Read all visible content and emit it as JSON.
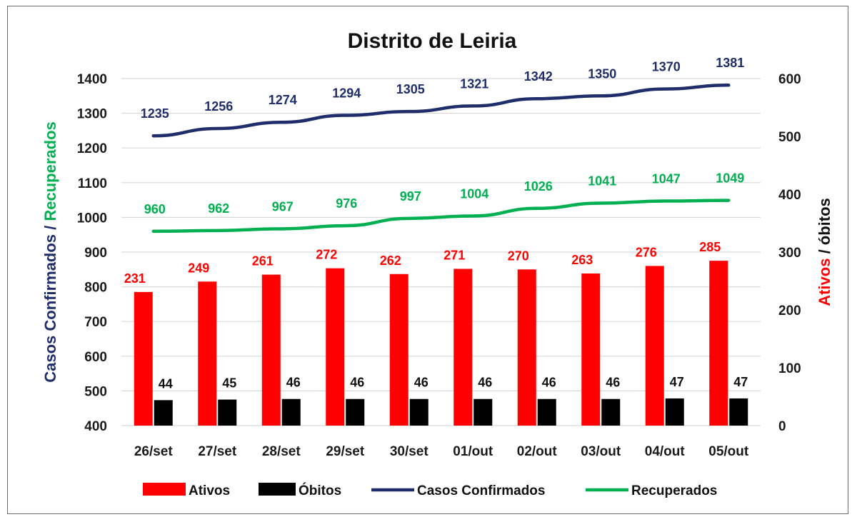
{
  "chart_data": {
    "type": "bar",
    "title": "Distrito de Leiria",
    "categories": [
      "26/set",
      "27/set",
      "28/set",
      "29/set",
      "30/set",
      "01/out",
      "02/out",
      "03/out",
      "04/out",
      "05/out"
    ],
    "y_left": {
      "label_parts": [
        {
          "text": "Casos Confirmados",
          "color": "#1f2d6b"
        },
        {
          "text": " / ",
          "color": "#1f2d6b"
        },
        {
          "text": "Recuperados",
          "color": "#00b050"
        }
      ],
      "range": [
        400,
        1400
      ],
      "ticks": [
        400,
        500,
        600,
        700,
        800,
        900,
        1000,
        1100,
        1200,
        1300,
        1400
      ]
    },
    "y_right": {
      "label_parts": [
        {
          "text": "Ativos",
          "color": "#ff0000"
        },
        {
          "text": " / óbitos",
          "color": "#111111"
        }
      ],
      "range": [
        0,
        600
      ],
      "ticks": [
        0,
        100,
        200,
        300,
        400,
        500,
        600
      ]
    },
    "series": [
      {
        "name": "Ativos",
        "kind": "bar",
        "axis": "right",
        "color": "#ff0000",
        "label_color": "#ff0000",
        "values": [
          231,
          249,
          261,
          272,
          262,
          271,
          270,
          263,
          276,
          285
        ]
      },
      {
        "name": "Óbitos",
        "kind": "bar",
        "axis": "right",
        "color": "#000000",
        "label_color": "#111111",
        "values": [
          44,
          45,
          46,
          46,
          46,
          46,
          46,
          46,
          47,
          47
        ]
      },
      {
        "name": "Casos Confirmados",
        "kind": "line",
        "axis": "left",
        "color": "#1f2d6b",
        "label_color": "#1f2d6b",
        "values": [
          1235,
          1256,
          1274,
          1294,
          1305,
          1321,
          1342,
          1350,
          1370,
          1381
        ]
      },
      {
        "name": "Recuperados",
        "kind": "line",
        "axis": "left",
        "color": "#00b050",
        "label_color": "#00b050",
        "values": [
          960,
          962,
          967,
          976,
          997,
          1004,
          1026,
          1041,
          1047,
          1049
        ]
      }
    ],
    "grid": true,
    "legend_position": "bottom"
  }
}
